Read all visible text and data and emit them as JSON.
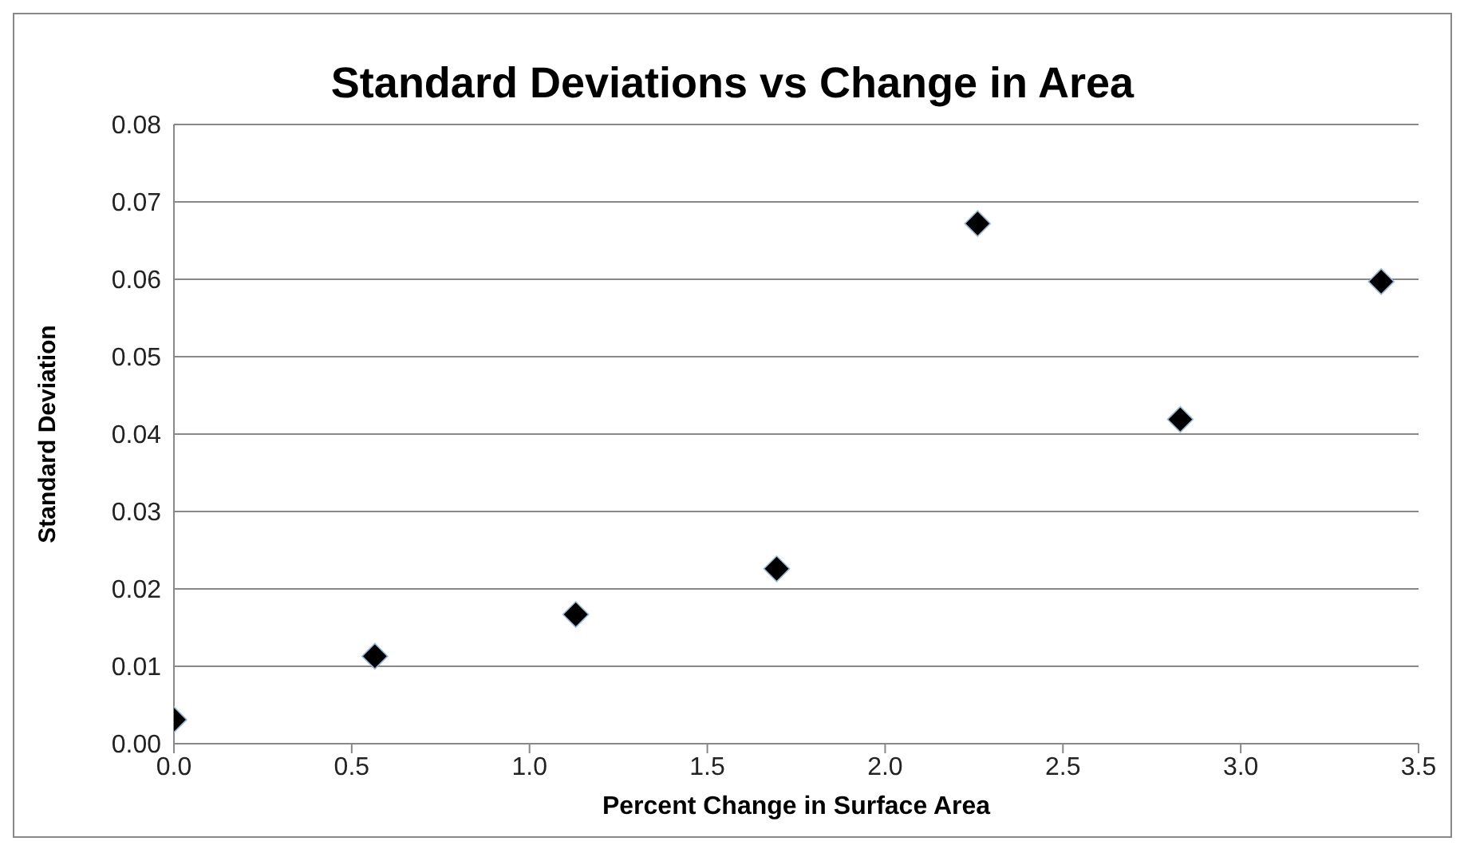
{
  "chart_data": {
    "type": "scatter",
    "title": "Standard Deviations vs Change in Area",
    "xlabel": "Percent Change in Surface Area",
    "ylabel": "Standard Deviation",
    "x": [
      0,
      0.565,
      1.13,
      1.695,
      2.26,
      2.83,
      3.395
    ],
    "series": [
      {
        "color": "#000000",
        "values": [
          0.0031,
          0.0113,
          0.0167,
          0.0226,
          0.0672,
          0.0419,
          0.0597
        ]
      }
    ],
    "xlim": [
      0,
      3.5
    ],
    "xticks": [
      {
        "value": 0,
        "label": "0.0"
      },
      {
        "value": 0.5,
        "label": "0.5"
      },
      {
        "value": 1,
        "label": "1.0"
      },
      {
        "value": 1.5,
        "label": "1.5"
      },
      {
        "value": 2,
        "label": "2.0"
      },
      {
        "value": 2.5,
        "label": "2.5"
      },
      {
        "value": 3,
        "label": "3.0"
      },
      {
        "value": 3.5,
        "label": "3.5"
      }
    ],
    "ylim": [
      0,
      0.08
    ],
    "yticks": [
      {
        "value": 0,
        "label": "0.00"
      },
      {
        "value": 0.01,
        "label": "0.01"
      },
      {
        "value": 0.02,
        "label": "0.02"
      },
      {
        "value": 0.03,
        "label": "0.03"
      },
      {
        "value": 0.04,
        "label": "0.04"
      },
      {
        "value": 0.05,
        "label": "0.05"
      },
      {
        "value": 0.06,
        "label": "0.06"
      },
      {
        "value": 0.07,
        "label": "0.07"
      },
      {
        "value": 0.08,
        "label": "0.08"
      }
    ],
    "grid": "y",
    "marker": "diamond"
  }
}
